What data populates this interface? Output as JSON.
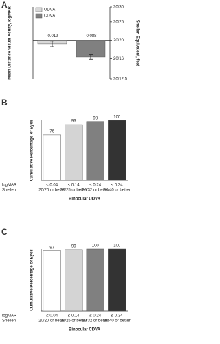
{
  "chart_data": [
    {
      "type": "bar-error",
      "label": "A",
      "ylabel": "Mean Distance Visual Acuity, logMAR",
      "y2label": "Snellen Equivalent, feet",
      "series": [
        {
          "name": "UDVA",
          "color": "#d9d9d9",
          "values": [
            -0.019
          ],
          "errors": [
            0.015
          ]
        },
        {
          "name": "CDVA",
          "color": "#808080",
          "values": [
            -0.088
          ],
          "errors": [
            0.012
          ]
        }
      ],
      "ylim": [
        -0.204,
        0.176
      ],
      "y2lim": [
        -0.204,
        0.176
      ],
      "y2ticks": [
        {
          "value": 0.176,
          "label": "20/30"
        },
        {
          "value": 0.097,
          "label": "20/25"
        },
        {
          "value": 0,
          "label": "20/20"
        },
        {
          "value": -0.097,
          "label": "20/16"
        },
        {
          "value": -0.204,
          "label": "20/12.5"
        }
      ],
      "legend": "top-left"
    },
    {
      "type": "bar",
      "label": "B",
      "ylabel": "Cumulative Percentage of Eyes",
      "xlabel": "Binocular UDVA",
      "row_labels": [
        "logMAR",
        "Snellen"
      ],
      "categories": [
        "≤ 0.04",
        "≤ 0.14",
        "≤ 0.24",
        "≤ 0.34"
      ],
      "sublabels": [
        "20/20 or better",
        "20/25 or better",
        "20/32 or better",
        "20/40 or better"
      ],
      "values": [
        76,
        93,
        98,
        100
      ],
      "colors": [
        "#ffffff",
        "#d4d4d4",
        "#808080",
        "#333333"
      ],
      "ylim": [
        0,
        100
      ]
    },
    {
      "type": "bar",
      "label": "C",
      "ylabel": "Cumulative Percentage of Eyes",
      "xlabel": "Binocular CDVA",
      "row_labels": [
        "logMAR",
        "Snellen"
      ],
      "categories": [
        "≤ 0.04",
        "≤ 0.14",
        "≤ 0.24",
        "≤ 0.34"
      ],
      "sublabels": [
        "20/20 or better",
        "20/25 or better",
        "20/32 or better",
        "20/40 or better"
      ],
      "values": [
        97,
        99,
        100,
        100
      ],
      "colors": [
        "#ffffff",
        "#d4d4d4",
        "#808080",
        "#333333"
      ],
      "ylim": [
        0,
        100
      ]
    }
  ]
}
